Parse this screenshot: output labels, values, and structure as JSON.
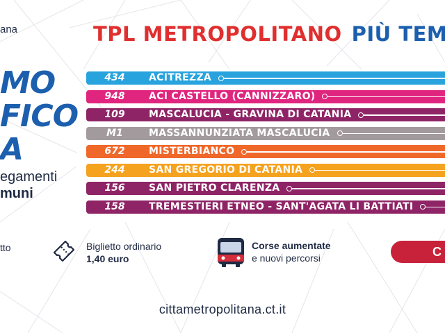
{
  "brand_fragment": "ana",
  "hero": {
    "line1": "MO",
    "line2": "FICO",
    "line3": "A",
    "sub_line1": "egamenti",
    "sub_line2": "muni"
  },
  "headline": {
    "part1": "TPL METROPOLITANO",
    "part2": "PIÙ TEMP"
  },
  "routes": [
    {
      "number": "434",
      "name": "ACITREZZA",
      "color": "#29a3dd"
    },
    {
      "number": "948",
      "name": "ACI CASTELLO (CANNIZZARO)",
      "color": "#e0257f"
    },
    {
      "number": "109",
      "name": "MASCALUCIA - GRAVINA DI CATANIA",
      "color": "#8e2466"
    },
    {
      "number": "M1",
      "name": "MASSANNUNZIATA MASCALUCIA",
      "color": "#a39a9e"
    },
    {
      "number": "672",
      "name": "MISTERBIANCO",
      "color": "#f0672a"
    },
    {
      "number": "244",
      "name": "SAN GREGORIO DI CATANIA",
      "color": "#f5a21e"
    },
    {
      "number": "156",
      "name": "SAN PIETRO CLARENZA",
      "color": "#8e2466"
    },
    {
      "number": "158",
      "name": "TREMESTIERI ETNEO - SANT'AGATA LI BATTIATI",
      "color": "#8e2466"
    }
  ],
  "features": {
    "left_fragment": "tto",
    "ticket_line1": "Biglietto ordinario",
    "ticket_line2": "1,40 euro",
    "corse_line1": "Corse aumentate",
    "corse_line2": "e nuovi percorsi"
  },
  "cta_label": "C",
  "website": "cittametropolitana.ct.it",
  "colors": {
    "red": "#e02f2f",
    "blue": "#1c5fae",
    "cta": "#c8213a",
    "text": "#1f2a44"
  },
  "icons": {
    "ticket": "ticket-icon",
    "bus": "bus-icon"
  }
}
